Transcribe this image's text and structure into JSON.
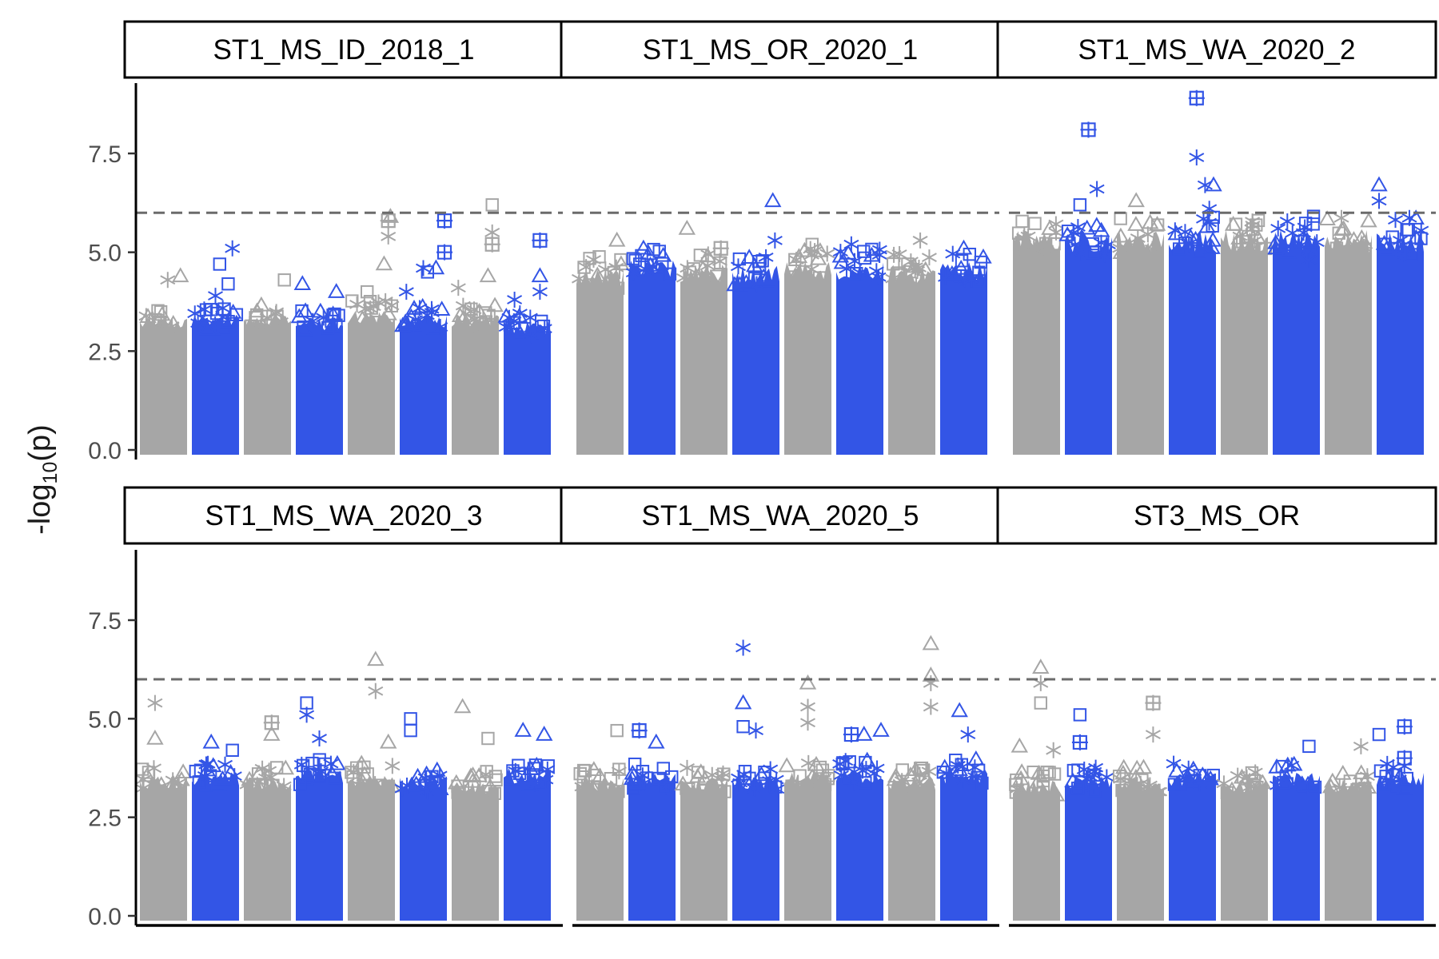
{
  "chart_data": {
    "type": "scatter",
    "subtype": "faceted manhattan plot",
    "ylabel": "-log10(p)",
    "ylabel_main": "-log",
    "ylabel_sub": "10",
    "ylabel_tail": "(p)",
    "ylim": [
      0,
      9.2
    ],
    "yticks": [
      "0.0",
      "2.5",
      "5.0",
      "7.5"
    ],
    "ytick_values": [
      0,
      2.5,
      5,
      7.5
    ],
    "threshold": 6,
    "threshold_style": "dashed",
    "grid": false,
    "legend": "none",
    "colors": {
      "even_chromosome": "#a6a6a6",
      "odd_chromosome": "#3355e6",
      "threshold": "#6b6b6b",
      "axis": "#000000",
      "tick_text": "#4d4d4d"
    },
    "chromosomes": 8,
    "marker_shapes": [
      "triangle",
      "asterisk",
      "square",
      "square-plus"
    ],
    "panels": [
      {
        "title": "ST1_MS_ID_2018_1",
        "base": [
          3.5,
          3.6,
          3.6,
          3.5,
          3.7,
          3.6,
          3.6,
          3.4
        ],
        "peaks": [
          {
            "chr": 1,
            "x": 0.9,
            "y": 5.1,
            "s": "asterisk"
          },
          {
            "chr": 1,
            "x": 0.6,
            "y": 4.7,
            "s": "square"
          },
          {
            "chr": 0,
            "x": 0.6,
            "y": 4.3,
            "s": "asterisk"
          },
          {
            "chr": 0,
            "x": 0.9,
            "y": 4.4,
            "s": "triangle"
          },
          {
            "chr": 1,
            "x": 0.5,
            "y": 3.9,
            "s": "asterisk"
          },
          {
            "chr": 1,
            "x": 0.8,
            "y": 4.2,
            "s": "square"
          },
          {
            "chr": 2,
            "x": 0.9,
            "y": 4.3,
            "s": "square"
          },
          {
            "chr": 3,
            "x": 0.1,
            "y": 4.2,
            "s": "triangle"
          },
          {
            "chr": 3,
            "x": 0.9,
            "y": 4.0,
            "s": "triangle"
          },
          {
            "chr": 4,
            "x": 0.4,
            "y": 4.0,
            "s": "square"
          },
          {
            "chr": 4,
            "x": 0.9,
            "y": 5.8,
            "s": "square-plus"
          },
          {
            "chr": 4,
            "x": 0.9,
            "y": 5.4,
            "s": "asterisk"
          },
          {
            "chr": 4,
            "x": 0.95,
            "y": 5.9,
            "s": "triangle"
          },
          {
            "chr": 4,
            "x": 0.8,
            "y": 4.7,
            "s": "triangle"
          },
          {
            "chr": 5,
            "x": 0.1,
            "y": 4.0,
            "s": "asterisk"
          },
          {
            "chr": 5,
            "x": 0.5,
            "y": 4.6,
            "s": "asterisk"
          },
          {
            "chr": 5,
            "x": 0.6,
            "y": 4.5,
            "s": "square"
          },
          {
            "chr": 5,
            "x": 0.8,
            "y": 4.6,
            "s": "triangle"
          },
          {
            "chr": 5,
            "x": 1.0,
            "y": 5.8,
            "s": "square-plus"
          },
          {
            "chr": 5,
            "x": 1.0,
            "y": 5.0,
            "s": "square-plus"
          },
          {
            "chr": 6,
            "x": 0.1,
            "y": 4.1,
            "s": "asterisk"
          },
          {
            "chr": 6,
            "x": 0.9,
            "y": 6.2,
            "s": "square"
          },
          {
            "chr": 6,
            "x": 0.9,
            "y": 5.5,
            "s": "asterisk"
          },
          {
            "chr": 6,
            "x": 0.9,
            "y": 5.2,
            "s": "square-plus"
          },
          {
            "chr": 6,
            "x": 0.8,
            "y": 4.4,
            "s": "triangle"
          },
          {
            "chr": 7,
            "x": 0.8,
            "y": 5.3,
            "s": "square-plus"
          },
          {
            "chr": 7,
            "x": 0.8,
            "y": 4.4,
            "s": "triangle"
          },
          {
            "chr": 7,
            "x": 0.8,
            "y": 4.0,
            "s": "asterisk"
          },
          {
            "chr": 7,
            "x": 0.2,
            "y": 3.8,
            "s": "asterisk"
          }
        ]
      },
      {
        "title": "ST1_MS_OR_2020_1",
        "base": [
          4.8,
          5.0,
          4.9,
          4.9,
          5.0,
          5.0,
          4.9,
          5.0
        ],
        "peaks": [
          {
            "chr": 3,
            "x": 0.9,
            "y": 6.3,
            "s": "triangle"
          },
          {
            "chr": 3,
            "x": 0.95,
            "y": 5.3,
            "s": "asterisk"
          },
          {
            "chr": 2,
            "x": 0.1,
            "y": 5.6,
            "s": "triangle"
          },
          {
            "chr": 2,
            "x": 0.9,
            "y": 5.1,
            "s": "square-plus"
          },
          {
            "chr": 0,
            "x": 0.9,
            "y": 5.3,
            "s": "triangle"
          },
          {
            "chr": 4,
            "x": 0.6,
            "y": 5.2,
            "s": "square"
          },
          {
            "chr": 5,
            "x": 0.3,
            "y": 5.2,
            "s": "asterisk"
          },
          {
            "chr": 6,
            "x": 0.7,
            "y": 5.3,
            "s": "asterisk"
          },
          {
            "chr": 7,
            "x": 0.5,
            "y": 5.1,
            "s": "triangle"
          },
          {
            "chr": 1,
            "x": 0.3,
            "y": 5.1,
            "s": "triangle"
          }
        ]
      },
      {
        "title": "ST1_MS_WA_2020_2",
        "base": [
          5.8,
          5.8,
          5.8,
          5.8,
          5.8,
          5.8,
          5.8,
          5.8
        ],
        "peaks": [
          {
            "chr": 3,
            "x": 0.6,
            "y": 8.9,
            "s": "square-plus"
          },
          {
            "chr": 1,
            "x": 0.5,
            "y": 8.1,
            "s": "square-plus"
          },
          {
            "chr": 3,
            "x": 0.6,
            "y": 7.4,
            "s": "asterisk"
          },
          {
            "chr": 1,
            "x": 0.7,
            "y": 6.6,
            "s": "asterisk"
          },
          {
            "chr": 3,
            "x": 0.8,
            "y": 6.7,
            "s": "asterisk"
          },
          {
            "chr": 3,
            "x": 1.0,
            "y": 6.7,
            "s": "triangle"
          },
          {
            "chr": 1,
            "x": 0.3,
            "y": 6.2,
            "s": "square"
          },
          {
            "chr": 2,
            "x": 0.4,
            "y": 6.3,
            "s": "triangle"
          },
          {
            "chr": 7,
            "x": 0.0,
            "y": 6.7,
            "s": "triangle"
          },
          {
            "chr": 7,
            "x": 0.0,
            "y": 6.3,
            "s": "asterisk"
          },
          {
            "chr": 3,
            "x": 0.9,
            "y": 6.1,
            "s": "asterisk"
          },
          {
            "chr": 0,
            "x": 0.2,
            "y": 5.0,
            "s": "asterisk"
          },
          {
            "chr": 1,
            "x": 0.4,
            "y": 5.2,
            "s": "triangle"
          },
          {
            "chr": 4,
            "x": 0.6,
            "y": 5.4,
            "s": "square"
          },
          {
            "chr": 5,
            "x": 0.3,
            "y": 5.0,
            "s": "triangle"
          },
          {
            "chr": 5,
            "x": 0.8,
            "y": 4.8,
            "s": "asterisk"
          },
          {
            "chr": 7,
            "x": 0.5,
            "y": 5.3,
            "s": "asterisk"
          }
        ]
      },
      {
        "title": "ST1_MS_WA_2020_3",
        "base": [
          3.7,
          3.8,
          3.7,
          3.9,
          3.8,
          3.7,
          3.6,
          3.9
        ],
        "peaks": [
          {
            "chr": 4,
            "x": 0.6,
            "y": 6.5,
            "s": "triangle"
          },
          {
            "chr": 4,
            "x": 0.6,
            "y": 5.7,
            "s": "asterisk"
          },
          {
            "chr": 0,
            "x": 0.3,
            "y": 5.4,
            "s": "asterisk"
          },
          {
            "chr": 0,
            "x": 0.3,
            "y": 4.5,
            "s": "triangle"
          },
          {
            "chr": 3,
            "x": 0.2,
            "y": 5.4,
            "s": "square"
          },
          {
            "chr": 3,
            "x": 0.2,
            "y": 5.1,
            "s": "asterisk"
          },
          {
            "chr": 2,
            "x": 0.6,
            "y": 4.9,
            "s": "square-plus"
          },
          {
            "chr": 2,
            "x": 0.6,
            "y": 4.6,
            "s": "triangle"
          },
          {
            "chr": 5,
            "x": 0.2,
            "y": 5.0,
            "s": "square"
          },
          {
            "chr": 5,
            "x": 0.2,
            "y": 4.7,
            "s": "square"
          },
          {
            "chr": 6,
            "x": 0.2,
            "y": 5.3,
            "s": "triangle"
          },
          {
            "chr": 6,
            "x": 0.8,
            "y": 4.5,
            "s": "square"
          },
          {
            "chr": 7,
            "x": 0.4,
            "y": 4.7,
            "s": "triangle"
          },
          {
            "chr": 7,
            "x": 0.9,
            "y": 4.6,
            "s": "triangle"
          },
          {
            "chr": 1,
            "x": 0.4,
            "y": 4.4,
            "s": "triangle"
          },
          {
            "chr": 1,
            "x": 0.9,
            "y": 4.2,
            "s": "square"
          },
          {
            "chr": 3,
            "x": 0.5,
            "y": 4.5,
            "s": "asterisk"
          },
          {
            "chr": 4,
            "x": 0.9,
            "y": 4.4,
            "s": "triangle"
          }
        ]
      },
      {
        "title": "ST1_MS_WA_2020_5",
        "base": [
          3.7,
          3.8,
          3.7,
          3.7,
          3.8,
          3.9,
          3.7,
          3.9
        ],
        "peaks": [
          {
            "chr": 3,
            "x": 0.2,
            "y": 6.8,
            "s": "asterisk"
          },
          {
            "chr": 3,
            "x": 0.2,
            "y": 5.4,
            "s": "triangle"
          },
          {
            "chr": 3,
            "x": 0.2,
            "y": 4.8,
            "s": "square"
          },
          {
            "chr": 6,
            "x": 0.95,
            "y": 6.9,
            "s": "triangle"
          },
          {
            "chr": 6,
            "x": 0.95,
            "y": 6.1,
            "s": "triangle"
          },
          {
            "chr": 6,
            "x": 0.95,
            "y": 5.9,
            "s": "asterisk"
          },
          {
            "chr": 6,
            "x": 0.95,
            "y": 5.3,
            "s": "asterisk"
          },
          {
            "chr": 4,
            "x": 0.5,
            "y": 5.9,
            "s": "triangle"
          },
          {
            "chr": 4,
            "x": 0.5,
            "y": 5.3,
            "s": "asterisk"
          },
          {
            "chr": 4,
            "x": 0.5,
            "y": 4.9,
            "s": "asterisk"
          },
          {
            "chr": 3,
            "x": 0.5,
            "y": 4.7,
            "s": "asterisk"
          },
          {
            "chr": 1,
            "x": 0.2,
            "y": 4.7,
            "s": "square-plus"
          },
          {
            "chr": 1,
            "x": 0.6,
            "y": 4.4,
            "s": "triangle"
          },
          {
            "chr": 5,
            "x": 0.3,
            "y": 4.6,
            "s": "square-plus"
          },
          {
            "chr": 5,
            "x": 0.6,
            "y": 4.6,
            "s": "triangle"
          },
          {
            "chr": 7,
            "x": 0.4,
            "y": 5.2,
            "s": "triangle"
          },
          {
            "chr": 7,
            "x": 0.6,
            "y": 4.6,
            "s": "asterisk"
          },
          {
            "chr": 0,
            "x": 0.9,
            "y": 4.7,
            "s": "square"
          },
          {
            "chr": 5,
            "x": 1.0,
            "y": 4.7,
            "s": "triangle"
          }
        ]
      },
      {
        "title": "ST3_MS_OR",
        "base": [
          3.6,
          3.7,
          3.7,
          3.8,
          3.6,
          3.8,
          3.6,
          3.8
        ],
        "peaks": [
          {
            "chr": 0,
            "x": 0.6,
            "y": 6.3,
            "s": "triangle"
          },
          {
            "chr": 0,
            "x": 0.6,
            "y": 5.9,
            "s": "asterisk"
          },
          {
            "chr": 0,
            "x": 0.6,
            "y": 5.4,
            "s": "square"
          },
          {
            "chr": 2,
            "x": 0.8,
            "y": 5.4,
            "s": "square-plus"
          },
          {
            "chr": 2,
            "x": 0.8,
            "y": 4.6,
            "s": "asterisk"
          },
          {
            "chr": 1,
            "x": 0.3,
            "y": 5.1,
            "s": "square"
          },
          {
            "chr": 1,
            "x": 0.3,
            "y": 4.4,
            "s": "square-plus"
          },
          {
            "chr": 0,
            "x": 0.1,
            "y": 4.3,
            "s": "triangle"
          },
          {
            "chr": 0,
            "x": 0.9,
            "y": 4.2,
            "s": "asterisk"
          },
          {
            "chr": 7,
            "x": 0.0,
            "y": 4.6,
            "s": "square"
          },
          {
            "chr": 7,
            "x": 0.6,
            "y": 4.8,
            "s": "square-plus"
          },
          {
            "chr": 7,
            "x": 0.6,
            "y": 4.0,
            "s": "square-plus"
          },
          {
            "chr": 5,
            "x": 0.8,
            "y": 4.3,
            "s": "square"
          },
          {
            "chr": 6,
            "x": 0.8,
            "y": 4.3,
            "s": "asterisk"
          }
        ]
      }
    ]
  }
}
